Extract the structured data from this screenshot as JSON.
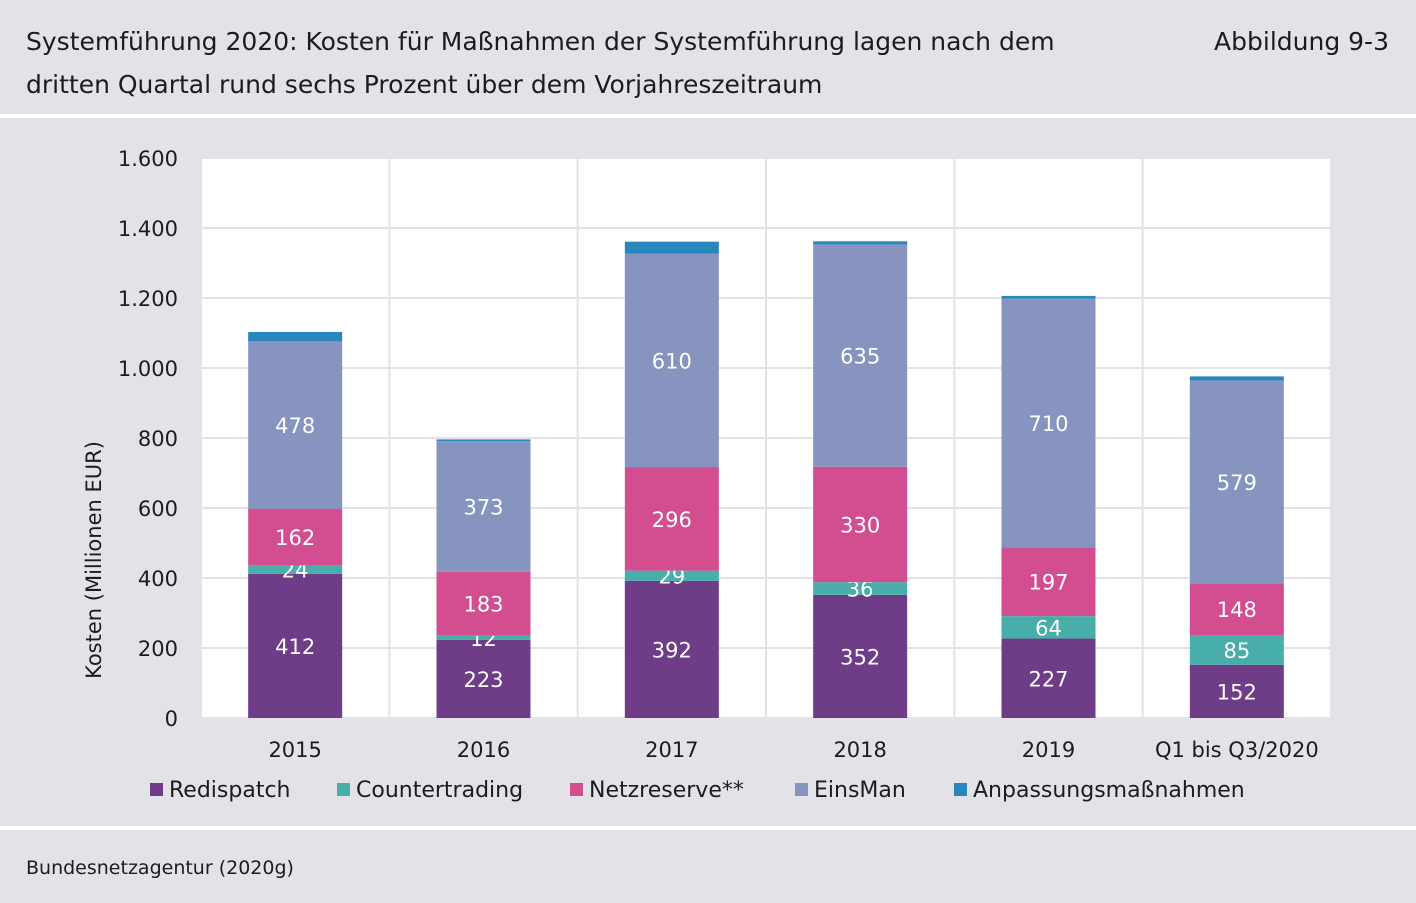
{
  "header": {
    "title": "Systemführung 2020: Kosten für Maßnahmen der Systemführung lagen nach dem dritten Quartal rund sechs Prozent über dem Vorjahreszeitraum",
    "figure_number": "Abbildung 9-3"
  },
  "footer": {
    "source": "Bundesnetzagentur (2020g)"
  },
  "chart_data": {
    "type": "bar",
    "stacked": true,
    "title": "",
    "xlabel": "",
    "ylabel": "Kosten (Millionen EUR)",
    "ylim": [
      0,
      1600
    ],
    "yticks": [
      0,
      200,
      400,
      600,
      800,
      1000,
      1200,
      1400,
      1600
    ],
    "ytick_labels": [
      "0",
      "200",
      "400",
      "600",
      "800",
      "1.000",
      "1.200",
      "1.400",
      "1.600"
    ],
    "grid": true,
    "legend_position": "bottom",
    "categories": [
      "2015",
      "2016",
      "2017",
      "2018",
      "2019",
      "Q1 bis Q3/2020"
    ],
    "series": [
      {
        "name": "Redispatch",
        "color": "#6f3c87",
        "values": [
          412,
          223,
          392,
          352,
          227,
          152
        ],
        "labels": [
          "412",
          "223",
          "392",
          "352",
          "227",
          "152"
        ]
      },
      {
        "name": "Countertrading",
        "color": "#47aeaa",
        "values": [
          24,
          12,
          29,
          36,
          64,
          85
        ],
        "labels": [
          "24",
          "12",
          "29",
          "36",
          "64",
          "85"
        ]
      },
      {
        "name": "Netzreserve**",
        "color": "#d24e91",
        "values": [
          162,
          183,
          296,
          330,
          197,
          148
        ],
        "labels": [
          "162",
          "183",
          "296",
          "330",
          "197",
          "148"
        ]
      },
      {
        "name": "EinsMan",
        "color": "#8694bf",
        "values": [
          478,
          373,
          610,
          635,
          710,
          579
        ],
        "labels": [
          "478",
          "373",
          "610",
          "635",
          "710",
          "579"
        ]
      },
      {
        "name": "Anpassungsmaßnahmen",
        "color": "#2a87bd",
        "values": [
          27,
          5,
          34,
          9,
          8,
          12
        ],
        "labels": [
          "",
          "",
          "",
          "",
          "",
          ""
        ]
      }
    ]
  }
}
